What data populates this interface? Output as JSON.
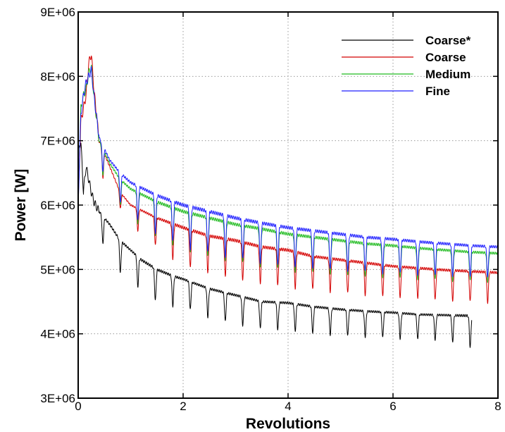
{
  "chart_data": {
    "type": "line",
    "title": "",
    "xlabel": "Revolutions",
    "ylabel": "Power [W]",
    "xlim": [
      0,
      8
    ],
    "ylim": [
      3000000,
      9000000
    ],
    "x_ticks": [
      0,
      2,
      4,
      6,
      8
    ],
    "x_tick_labels": [
      "0",
      "2",
      "4",
      "6",
      "8"
    ],
    "y_ticks": [
      3000000,
      4000000,
      5000000,
      6000000,
      7000000,
      8000000,
      9000000
    ],
    "y_tick_labels": [
      "3E+06",
      "4E+06",
      "5E+06",
      "6E+06",
      "7E+06",
      "8E+06",
      "9E+06"
    ],
    "grid": true,
    "legend_position": "top-right",
    "series": [
      {
        "name": "Coarse*",
        "color": "#000000",
        "x": [
          0,
          0.05,
          0.1,
          0.15,
          0.2,
          0.25,
          0.3,
          0.4,
          0.5,
          0.6,
          0.8,
          1.0,
          1.2,
          1.5,
          1.8,
          2.0,
          2.5,
          3.0,
          3.5,
          4.0,
          4.5,
          5.0,
          5.5,
          6.0,
          6.5,
          7.0,
          7.5
        ],
        "values": [
          6800000,
          7000000,
          6200000,
          6600000,
          6400000,
          6200000,
          6050000,
          5900000,
          5800000,
          5700000,
          5450000,
          5300000,
          5150000,
          5000000,
          4900000,
          4850000,
          4700000,
          4600000,
          4500000,
          4480000,
          4420000,
          4380000,
          4350000,
          4330000,
          4300000,
          4290000,
          4280000
        ],
        "trough_values": [
          null,
          null,
          null,
          null,
          null,
          null,
          null,
          5450000,
          5380000,
          5250000,
          4950000,
          4900000,
          4650000,
          4500000,
          4430000,
          4420000,
          4250000,
          4150000,
          4080000,
          4050000,
          4000000,
          3970000,
          3950000,
          3930000,
          3910000,
          3900000,
          3780000
        ]
      },
      {
        "name": "Coarse",
        "color": "#d40000",
        "x": [
          0,
          0.05,
          0.1,
          0.15,
          0.2,
          0.25,
          0.3,
          0.4,
          0.6,
          0.8,
          1.0,
          1.5,
          2.0,
          2.5,
          3.0,
          3.5,
          4.0,
          4.5,
          5.0,
          5.5,
          6.0,
          6.5,
          7.0,
          7.5,
          8.0
        ],
        "values": [
          6000000,
          7300000,
          7500000,
          7700000,
          8200000,
          8350000,
          7800000,
          7000000,
          6600000,
          6200000,
          6000000,
          5800000,
          5650000,
          5520000,
          5450000,
          5350000,
          5300000,
          5200000,
          5150000,
          5100000,
          5050000,
          5020000,
          4990000,
          4970000,
          4950000
        ],
        "trough_values": [
          null,
          null,
          null,
          null,
          null,
          null,
          null,
          6550000,
          6200000,
          5950000,
          5700000,
          5350000,
          5050000,
          4950000,
          4850000,
          4780000,
          4720000,
          4680000,
          4640000,
          4600000,
          4570000,
          4550000,
          4520000,
          4500000,
          4480000
        ]
      },
      {
        "name": "Medium",
        "color": "#22bb22",
        "x": [
          0,
          0.05,
          0.1,
          0.15,
          0.2,
          0.25,
          0.3,
          0.4,
          0.6,
          0.8,
          1.0,
          1.5,
          2.0,
          2.5,
          3.0,
          3.5,
          4.0,
          4.5,
          5.0,
          5.5,
          6.0,
          6.5,
          7.0,
          7.5,
          8.0
        ],
        "values": [
          6000000,
          7500000,
          7700000,
          7800000,
          8050000,
          8150000,
          7700000,
          7000000,
          6650000,
          6400000,
          6250000,
          6050000,
          5900000,
          5800000,
          5700000,
          5630000,
          5550000,
          5500000,
          5450000,
          5400000,
          5370000,
          5330000,
          5300000,
          5270000,
          5250000
        ],
        "trough_values": [
          null,
          null,
          null,
          null,
          null,
          null,
          null,
          6600000,
          6250000,
          6000000,
          5800000,
          5500000,
          5300000,
          5200000,
          5120000,
          5050000,
          4980000,
          4950000,
          4920000,
          4890000,
          4870000,
          4850000,
          4830000,
          4820000,
          4800000
        ]
      },
      {
        "name": "Fine",
        "color": "#2222ff",
        "x": [
          0,
          0.05,
          0.1,
          0.15,
          0.2,
          0.25,
          0.3,
          0.4,
          0.6,
          0.8,
          1.0,
          1.5,
          2.0,
          2.5,
          3.0,
          3.5,
          4.0,
          4.5,
          5.0,
          5.5,
          6.0,
          6.5,
          7.0,
          7.5,
          8.0
        ],
        "values": [
          6000000,
          7400000,
          7700000,
          7900000,
          8000000,
          8100000,
          7700000,
          7050000,
          6700000,
          6500000,
          6350000,
          6150000,
          6000000,
          5900000,
          5800000,
          5720000,
          5650000,
          5600000,
          5550000,
          5500000,
          5470000,
          5430000,
          5400000,
          5370000,
          5350000
        ],
        "trough_values": [
          null,
          null,
          null,
          null,
          null,
          null,
          null,
          6650000,
          6300000,
          6050000,
          5850000,
          5550000,
          5350000,
          5250000,
          5180000,
          5100000,
          5050000,
          5020000,
          4990000,
          4960000,
          4940000,
          4920000,
          4900000,
          4890000,
          4870000
        ]
      }
    ]
  }
}
